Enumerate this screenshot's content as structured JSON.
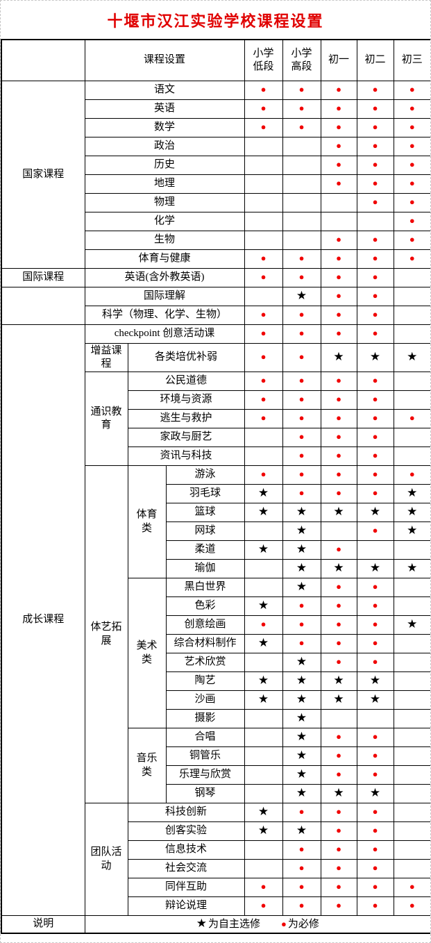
{
  "title": "十堰市汉江实验学校课程设置",
  "colors": {
    "accent_red": "#e00000",
    "dot_red": "#f00000",
    "star_black": "#000000"
  },
  "symbols": {
    "d": "●",
    "s": "★"
  },
  "header": {
    "course_setup": "课程设置",
    "grades": [
      "小学低段",
      "小学高段",
      "初一",
      "初二",
      "初三"
    ]
  },
  "legend": {
    "note": "说明",
    "star_symbol": "★",
    "star_text": "为自主选修",
    "dot_symbol": "●",
    "dot_text": "为必修"
  },
  "rows": [
    {
      "lead": [
        {
          "t": "国家课程",
          "rs": 10,
          "n": "category-cell"
        },
        {
          "t": "语文",
          "cs": 3
        }
      ],
      "marks": [
        "d",
        "d",
        "d",
        "d",
        "d"
      ]
    },
    {
      "lead": [
        {
          "t": "英语",
          "cs": 3
        }
      ],
      "marks": [
        "d",
        "d",
        "d",
        "d",
        "d"
      ]
    },
    {
      "lead": [
        {
          "t": "数学",
          "cs": 3
        }
      ],
      "marks": [
        "d",
        "d",
        "d",
        "d",
        "d"
      ]
    },
    {
      "lead": [
        {
          "t": "政治",
          "cs": 3
        }
      ],
      "marks": [
        "",
        "",
        "d",
        "d",
        "d"
      ]
    },
    {
      "lead": [
        {
          "t": "历史",
          "cs": 3
        }
      ],
      "marks": [
        "",
        "",
        "d",
        "d",
        "d"
      ]
    },
    {
      "lead": [
        {
          "t": "地理",
          "cs": 3
        }
      ],
      "marks": [
        "",
        "",
        "d",
        "d",
        "d"
      ]
    },
    {
      "lead": [
        {
          "t": "物理",
          "cs": 3
        }
      ],
      "marks": [
        "",
        "",
        "",
        "d",
        "d"
      ]
    },
    {
      "lead": [
        {
          "t": "化学",
          "cs": 3
        }
      ],
      "marks": [
        "",
        "",
        "",
        "",
        "d"
      ]
    },
    {
      "lead": [
        {
          "t": "生物",
          "cs": 3
        }
      ],
      "marks": [
        "",
        "",
        "d",
        "d",
        "d"
      ]
    },
    {
      "lead": [
        {
          "t": "体育与健康",
          "cs": 3
        }
      ],
      "marks": [
        "d",
        "d",
        "d",
        "d",
        "d"
      ]
    },
    {
      "lead": [
        {
          "t": "国际课程",
          "n": "category-cell"
        },
        {
          "t": "英语(含外教英语)",
          "cs": 3
        }
      ],
      "marks": [
        "d",
        "d",
        "d",
        "d",
        ""
      ]
    },
    {
      "lead": [
        {
          "t": "",
          "rs": 2,
          "n": "category-cell"
        },
        {
          "t": "国际理解",
          "cs": 3
        }
      ],
      "marks": [
        "",
        "s",
        "d",
        "d",
        ""
      ]
    },
    {
      "lead": [
        {
          "t": "科学（物理、化学、生物）",
          "cs": 3
        }
      ],
      "marks": [
        "d",
        "d",
        "d",
        "d",
        ""
      ]
    },
    {
      "lead": [
        {
          "t": "成长课程",
          "rs": 31,
          "n": "category-cell"
        },
        {
          "t": "checkpoint 创意活动课",
          "cs": 3
        }
      ],
      "marks": [
        "d",
        "d",
        "d",
        "d",
        ""
      ]
    },
    {
      "cls": "tall",
      "lead": [
        {
          "t": "增益课程",
          "n": "subcategory-cell"
        },
        {
          "t": "各类培优补弱",
          "cs": 2
        }
      ],
      "marks": [
        "d",
        "d",
        "s",
        "s",
        "s"
      ]
    },
    {
      "lead": [
        {
          "t": "通识教育",
          "rs": 5,
          "n": "subcategory-cell"
        },
        {
          "t": "公民道德",
          "cs": 2
        }
      ],
      "marks": [
        "d",
        "d",
        "d",
        "d",
        ""
      ]
    },
    {
      "lead": [
        {
          "t": "环境与资源",
          "cs": 2
        }
      ],
      "marks": [
        "d",
        "d",
        "d",
        "d",
        ""
      ]
    },
    {
      "lead": [
        {
          "t": "逃生与救护",
          "cs": 2
        }
      ],
      "marks": [
        "d",
        "d",
        "d",
        "d",
        "d"
      ]
    },
    {
      "lead": [
        {
          "t": "家政与厨艺",
          "cs": 2
        }
      ],
      "marks": [
        "",
        "d",
        "d",
        "d",
        ""
      ]
    },
    {
      "lead": [
        {
          "t": "资讯与科技",
          "cs": 2
        }
      ],
      "marks": [
        "",
        "d",
        "d",
        "d",
        ""
      ]
    },
    {
      "lead": [
        {
          "t": "体艺拓展",
          "rs": 18,
          "n": "subcategory-cell"
        },
        {
          "t": "体育类",
          "rs": 6,
          "n": "subsubcategory-cell"
        },
        {
          "t": "游泳"
        }
      ],
      "marks": [
        "d",
        "d",
        "d",
        "d",
        "d"
      ]
    },
    {
      "lead": [
        {
          "t": "羽毛球"
        }
      ],
      "marks": [
        "s",
        "d",
        "d",
        "d",
        "s"
      ]
    },
    {
      "lead": [
        {
          "t": "篮球"
        }
      ],
      "marks": [
        "s",
        "s",
        "s",
        "s",
        "s"
      ]
    },
    {
      "lead": [
        {
          "t": "网球"
        }
      ],
      "marks": [
        "",
        "s",
        "",
        "d",
        "s"
      ]
    },
    {
      "lead": [
        {
          "t": "柔道"
        }
      ],
      "marks": [
        "s",
        "s",
        "d",
        "",
        ""
      ]
    },
    {
      "lead": [
        {
          "t": "瑜伽"
        }
      ],
      "marks": [
        "",
        "s",
        "s",
        "s",
        "s"
      ]
    },
    {
      "lead": [
        {
          "t": "美术类",
          "rs": 8,
          "n": "subsubcategory-cell"
        },
        {
          "t": "黑白世界"
        }
      ],
      "marks": [
        "",
        "s",
        "d",
        "d",
        ""
      ]
    },
    {
      "lead": [
        {
          "t": "色彩"
        }
      ],
      "marks": [
        "s",
        "d",
        "d",
        "d",
        ""
      ]
    },
    {
      "lead": [
        {
          "t": "创意绘画"
        }
      ],
      "marks": [
        "d",
        "d",
        "d",
        "d",
        "s"
      ]
    },
    {
      "lead": [
        {
          "t": "综合材料制作"
        }
      ],
      "marks": [
        "s",
        "d",
        "d",
        "d",
        ""
      ]
    },
    {
      "lead": [
        {
          "t": "艺术欣赏"
        }
      ],
      "marks": [
        "",
        "s",
        "d",
        "d",
        ""
      ]
    },
    {
      "lead": [
        {
          "t": "陶艺"
        }
      ],
      "marks": [
        "s",
        "s",
        "s",
        "s",
        ""
      ]
    },
    {
      "lead": [
        {
          "t": "沙画"
        }
      ],
      "marks": [
        "s",
        "s",
        "s",
        "s",
        ""
      ]
    },
    {
      "lead": [
        {
          "t": "摄影"
        }
      ],
      "marks": [
        "",
        "s",
        "",
        "",
        ""
      ]
    },
    {
      "lead": [
        {
          "t": "音乐类",
          "rs": 4,
          "n": "subsubcategory-cell"
        },
        {
          "t": "合唱"
        }
      ],
      "marks": [
        "",
        "s",
        "d",
        "d",
        ""
      ]
    },
    {
      "lead": [
        {
          "t": "铜管乐"
        }
      ],
      "marks": [
        "",
        "s",
        "d",
        "d",
        ""
      ]
    },
    {
      "lead": [
        {
          "t": "乐理与欣赏"
        }
      ],
      "marks": [
        "",
        "s",
        "d",
        "d",
        ""
      ]
    },
    {
      "lead": [
        {
          "t": "钢琴"
        }
      ],
      "marks": [
        "",
        "s",
        "s",
        "s",
        ""
      ]
    },
    {
      "lead": [
        {
          "t": "团队活动",
          "rs": 6,
          "n": "subcategory-cell"
        },
        {
          "t": "科技创新",
          "cs": 2
        }
      ],
      "marks": [
        "s",
        "d",
        "d",
        "d",
        ""
      ]
    },
    {
      "lead": [
        {
          "t": "创客实验",
          "cs": 2
        }
      ],
      "marks": [
        "s",
        "s",
        "d",
        "d",
        ""
      ]
    },
    {
      "lead": [
        {
          "t": "信息技术",
          "cs": 2
        }
      ],
      "marks": [
        "",
        "d",
        "d",
        "d",
        ""
      ]
    },
    {
      "lead": [
        {
          "t": "社会交流",
          "cs": 2
        }
      ],
      "marks": [
        "",
        "d",
        "d",
        "d",
        ""
      ]
    },
    {
      "lead": [
        {
          "t": "同伴互助",
          "cs": 2
        }
      ],
      "marks": [
        "d",
        "d",
        "d",
        "d",
        "d"
      ]
    },
    {
      "lead": [
        {
          "t": "辩论说理",
          "cs": 2
        }
      ],
      "marks": [
        "d",
        "d",
        "d",
        "d",
        "d"
      ]
    }
  ]
}
